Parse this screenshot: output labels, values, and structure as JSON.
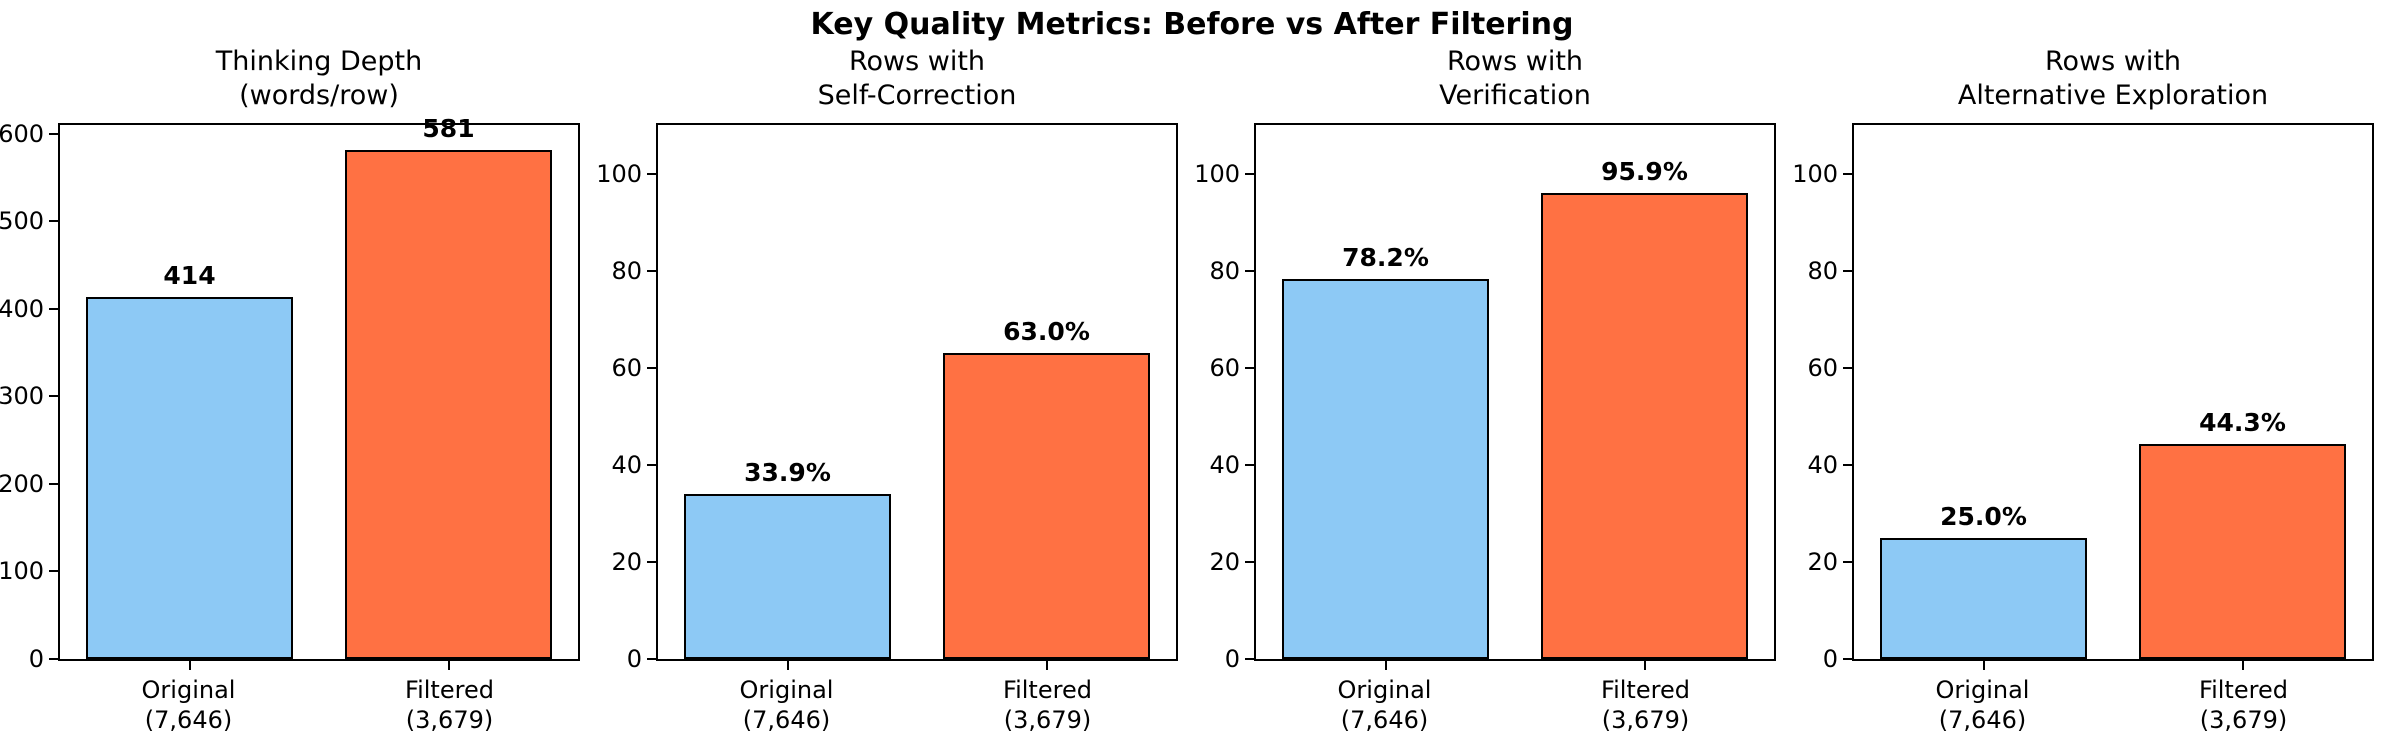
{
  "suptitle": "Key Quality Metrics: Before vs After Filtering",
  "colors": {
    "original_bar": "#8dc9f5",
    "filtered_bar": "#ff7143",
    "bar_edge": "#000000",
    "axis": "#000000",
    "text": "#000000",
    "background": "#ffffff"
  },
  "xtick_labels": [
    {
      "line1": "Original",
      "line2": "(7,646)"
    },
    {
      "line1": "Filtered",
      "line2": "(3,679)"
    }
  ],
  "chart_data": [
    {
      "type": "bar",
      "title_lines": [
        "Thinking Depth",
        "(words/row)"
      ],
      "categories": [
        "Original (7,646)",
        "Filtered (3,679)"
      ],
      "values": [
        414,
        581
      ],
      "value_labels": [
        "414",
        "581"
      ],
      "yticks": [
        0,
        100,
        200,
        300,
        400,
        500,
        600
      ],
      "ylim": [
        0,
        610
      ],
      "grid": false,
      "legend": "none"
    },
    {
      "type": "bar",
      "title_lines": [
        "Rows with",
        "Self-Correction"
      ],
      "categories": [
        "Original (7,646)",
        "Filtered (3,679)"
      ],
      "values": [
        33.9,
        63.0
      ],
      "value_labels": [
        "33.9%",
        "63.0%"
      ],
      "yticks": [
        0,
        20,
        40,
        60,
        80,
        100
      ],
      "ylim": [
        0,
        110
      ],
      "grid": false,
      "legend": "none"
    },
    {
      "type": "bar",
      "title_lines": [
        "Rows with",
        "Verification"
      ],
      "categories": [
        "Original (7,646)",
        "Filtered (3,679)"
      ],
      "values": [
        78.2,
        95.9
      ],
      "value_labels": [
        "78.2%",
        "95.9%"
      ],
      "yticks": [
        0,
        20,
        40,
        60,
        80,
        100
      ],
      "ylim": [
        0,
        110
      ],
      "grid": false,
      "legend": "none"
    },
    {
      "type": "bar",
      "title_lines": [
        "Rows with",
        "Alternative Exploration"
      ],
      "categories": [
        "Original (7,646)",
        "Filtered (3,679)"
      ],
      "values": [
        25.0,
        44.3
      ],
      "value_labels": [
        "25.0%",
        "44.3%"
      ],
      "yticks": [
        0,
        20,
        40,
        60,
        80,
        100
      ],
      "ylim": [
        0,
        110
      ],
      "grid": false,
      "legend": "none"
    }
  ]
}
